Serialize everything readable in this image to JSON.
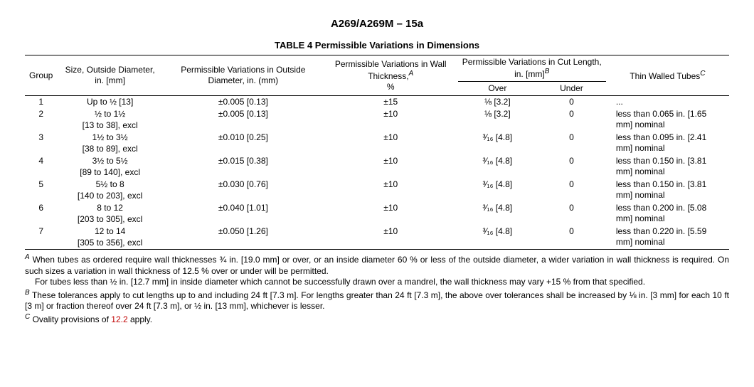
{
  "docTitle": "A269/A269M – 15a",
  "tableTitle": "TABLE 4 Permissible Variations in Dimensions",
  "headers": {
    "group": "Group",
    "size": "Size, Outside Diameter, in. [mm]",
    "od": "Permissible Variations in Outside Diameter, in. (mm)",
    "wall": "Permissible Variations in Wall Thickness,",
    "wallSup": "A",
    "wallPct": "%",
    "cut": "Permissible Variations in Cut Length, in. [mm]",
    "cutSup": "B",
    "over": "Over",
    "under": "Under",
    "thin": "Thin Walled Tubes",
    "thinSup": "C"
  },
  "rows": [
    {
      "group": "1",
      "sizeMain": "Up to ½ [13]",
      "sizeSub": "",
      "od": "±0.005 [0.13]",
      "wall": "±15",
      "over": "⅛ [3.2]",
      "under": "0",
      "thin": "..."
    },
    {
      "group": "2",
      "sizeMain": "½ to 1½",
      "sizeSub": "[13 to 38], excl",
      "od": "±0.005 [0.13]",
      "wall": "±10",
      "over": "⅛ [3.2]",
      "under": "0",
      "thin": "less than 0.065 in. [1.65 mm] nominal"
    },
    {
      "group": "3",
      "sizeMain": "1½ to 3½",
      "sizeSub": "[38 to 89], excl",
      "od": "±0.010 [0.25]",
      "wall": "±10",
      "over": "³⁄₁₆ [4.8]",
      "under": "0",
      "thin": "less than 0.095 in. [2.41 mm] nominal"
    },
    {
      "group": "4",
      "sizeMain": "3½ to 5½",
      "sizeSub": "[89 to 140], excl",
      "od": "±0.015 [0.38]",
      "wall": "±10",
      "over": "³⁄₁₆ [4.8]",
      "under": "0",
      "thin": "less than 0.150 in. [3.81 mm] nominal"
    },
    {
      "group": "5",
      "sizeMain": "5½ to 8",
      "sizeSub": "[140 to 203], excl",
      "od": "±0.030 [0.76]",
      "wall": "±10",
      "over": "³⁄₁₆ [4.8]",
      "under": "0",
      "thin": "less than 0.150 in. [3.81 mm] nominal"
    },
    {
      "group": "6",
      "sizeMain": "8 to 12",
      "sizeSub": "[203 to 305], excl",
      "od": "±0.040 [1.01]",
      "wall": "±10",
      "over": "³⁄₁₆ [4.8]",
      "under": "0",
      "thin": "less than 0.200 in. [5.08 mm] nominal"
    },
    {
      "group": "7",
      "sizeMain": "12 to 14",
      "sizeSub": "[305 to 356], excl",
      "od": "±0.050 [1.26]",
      "wall": "±10",
      "over": "³⁄₁₆ [4.8]",
      "under": "0",
      "thin": "less than 0.220 in. [5.59 mm] nominal"
    }
  ],
  "footnotes": {
    "A_sup": "A",
    "A_text": " When tubes as ordered require wall thicknesses ¾ in. [19.0 mm] or over, or an inside diameter 60 % or less of the outside diameter, a wider variation in wall thickness is required. On such sizes a variation in wall thickness of 12.5 % over or under will be permitted.",
    "A_cont": "For tubes less than ½ in. [12.7 mm] in inside diameter which cannot be successfully drawn over a mandrel, the wall thickness may vary +15 % from that specified.",
    "B_sup": "B",
    "B_text": " These tolerances apply to cut lengths up to and including 24 ft [7.3 m]. For lengths greater than 24 ft [7.3 m], the above over tolerances shall be increased by ⅛ in. [3 mm] for each 10 ft [3 m] or fraction thereof over 24 ft [7.3 m], or ½  in. [13 mm], whichever is lesser.",
    "C_sup": "C",
    "C_pre": " Ovality provisions of ",
    "C_link": "12.2",
    "C_post": " apply."
  }
}
